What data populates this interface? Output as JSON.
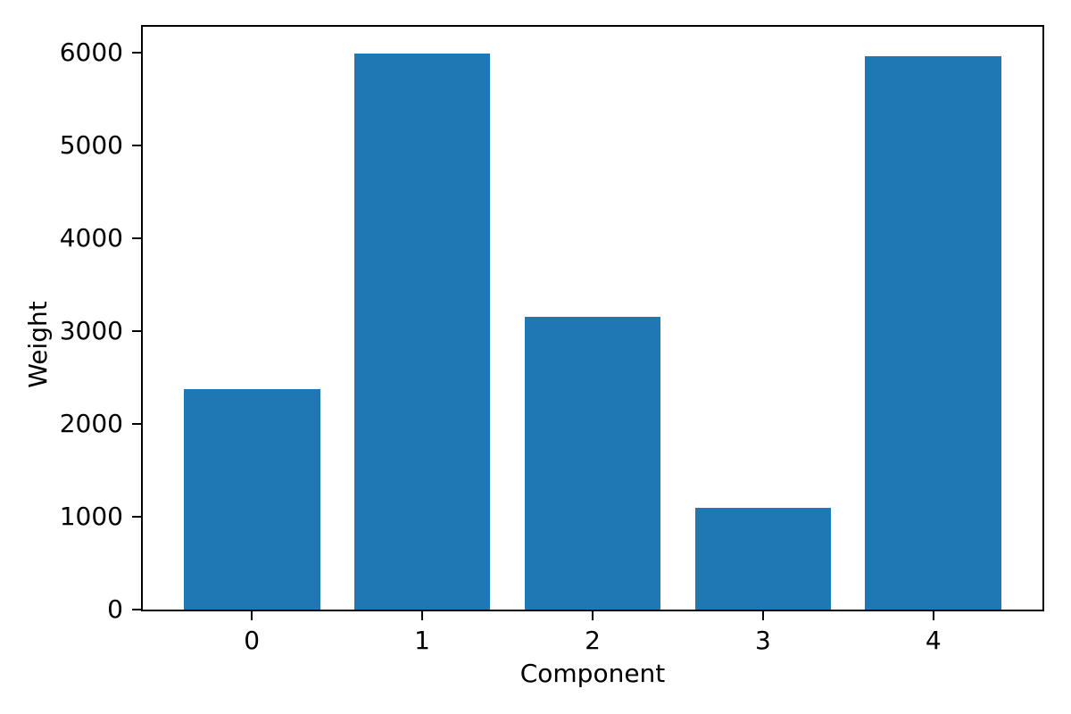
{
  "chart_data": {
    "type": "bar",
    "categories": [
      "0",
      "1",
      "2",
      "3",
      "4"
    ],
    "values": [
      2375,
      5990,
      3150,
      1095,
      5960
    ],
    "title": "",
    "xlabel": "Component",
    "ylabel": "Weight",
    "xlim": [
      -0.64,
      4.64
    ],
    "ylim": [
      0,
      6280
    ],
    "yticks": [
      0,
      1000,
      2000,
      3000,
      4000,
      5000,
      6000
    ],
    "bar_width_fraction": 0.8,
    "bar_color": "#1f77b4",
    "grid": false,
    "legend_position": "none"
  }
}
